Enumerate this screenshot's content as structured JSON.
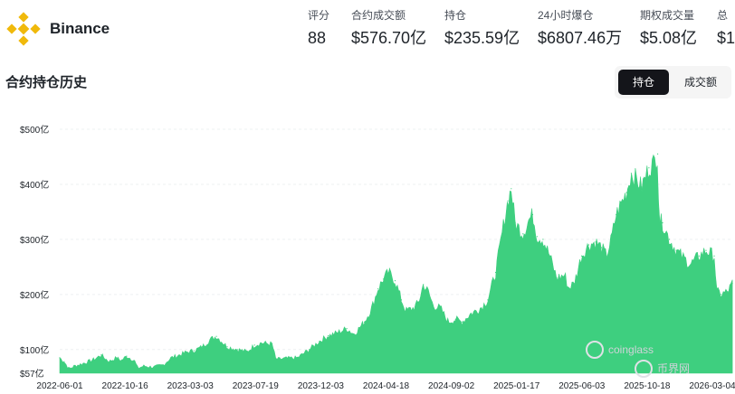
{
  "brand": {
    "name": "Binance",
    "logo": "binance-diamond-logo",
    "logo_color": "#F0B90B"
  },
  "stats": [
    {
      "label": "评分",
      "value": "88"
    },
    {
      "label": "合约成交额",
      "value": "$576.70亿"
    },
    {
      "label": "持仓",
      "value": "$235.59亿"
    },
    {
      "label": "24小时爆仓",
      "value": "$6807.46万"
    },
    {
      "label": "期权成交量",
      "value": "$5.08亿"
    },
    {
      "label": "总",
      "value": "$1"
    }
  ],
  "section": {
    "title": "合约持仓历史"
  },
  "toggle": {
    "active": "持仓",
    "inactive": "成交额"
  },
  "watermarks": {
    "coinglass": "coinglass",
    "site": "币界网"
  },
  "colors": {
    "series": "#3ECF7F",
    "toggle_active_bg": "#14151A",
    "toggle_bg": "#F5F5F5"
  },
  "chart_data": {
    "type": "area",
    "ylabel": "",
    "xlabel": "",
    "y_unit": "亿 USD",
    "ylim": [
      57,
      500
    ],
    "y_ticks": [
      {
        "value": 500,
        "label": "$500亿"
      },
      {
        "value": 400,
        "label": "$400亿"
      },
      {
        "value": 300,
        "label": "$300亿"
      },
      {
        "value": 200,
        "label": "$200亿"
      },
      {
        "value": 100,
        "label": "$100亿"
      },
      {
        "value": 57,
        "label": "$57亿"
      }
    ],
    "x_ticks": [
      "2022-06-01",
      "2022-10-16",
      "2023-03-03",
      "2023-07-19",
      "2023-12-03",
      "2024-04-18",
      "2024-09-02",
      "2025-01-17",
      "2025-06-03",
      "2025-10-18",
      "2026-03-04"
    ],
    "grid": true,
    "series": [
      {
        "points": [
          [
            "2022-06-01",
            85
          ],
          [
            "2022-06-10",
            78
          ],
          [
            "2022-06-20",
            65
          ],
          [
            "2022-07-01",
            70
          ],
          [
            "2022-07-20",
            75
          ],
          [
            "2022-08-10",
            82
          ],
          [
            "2022-08-25",
            90
          ],
          [
            "2022-09-10",
            78
          ],
          [
            "2022-09-25",
            85
          ],
          [
            "2022-10-05",
            80
          ],
          [
            "2022-10-16",
            88
          ],
          [
            "2022-11-01",
            80
          ],
          [
            "2022-11-08",
            66
          ],
          [
            "2022-11-20",
            70
          ],
          [
            "2022-12-10",
            68
          ],
          [
            "2022-12-30",
            72
          ],
          [
            "2023-01-15",
            85
          ],
          [
            "2023-02-01",
            90
          ],
          [
            "2023-02-15",
            95
          ],
          [
            "2023-03-03",
            98
          ],
          [
            "2023-03-20",
            105
          ],
          [
            "2023-04-05",
            118
          ],
          [
            "2023-04-18",
            124
          ],
          [
            "2023-05-10",
            105
          ],
          [
            "2023-06-01",
            100
          ],
          [
            "2023-06-20",
            96
          ],
          [
            "2023-07-05",
            108
          ],
          [
            "2023-07-19",
            112
          ],
          [
            "2023-08-10",
            110
          ],
          [
            "2023-08-18",
            82
          ],
          [
            "2023-09-10",
            84
          ],
          [
            "2023-10-01",
            85
          ],
          [
            "2023-10-25",
            100
          ],
          [
            "2023-11-15",
            115
          ],
          [
            "2023-12-03",
            125
          ],
          [
            "2023-12-20",
            130
          ],
          [
            "2024-01-10",
            138
          ],
          [
            "2024-01-25",
            128
          ],
          [
            "2024-02-15",
            150
          ],
          [
            "2024-03-01",
            175
          ],
          [
            "2024-03-14",
            210
          ],
          [
            "2024-03-25",
            228
          ],
          [
            "2024-04-05",
            240
          ],
          [
            "2024-04-18",
            225
          ],
          [
            "2024-05-01",
            190
          ],
          [
            "2024-05-10",
            170
          ],
          [
            "2024-05-25",
            175
          ],
          [
            "2024-06-05",
            185
          ],
          [
            "2024-06-15",
            218
          ],
          [
            "2024-06-25",
            205
          ],
          [
            "2024-07-05",
            180
          ],
          [
            "2024-07-20",
            175
          ],
          [
            "2024-08-05",
            150
          ],
          [
            "2024-08-20",
            155
          ],
          [
            "2024-09-02",
            150
          ],
          [
            "2024-09-20",
            165
          ],
          [
            "2024-10-10",
            175
          ],
          [
            "2024-10-25",
            190
          ],
          [
            "2024-11-10",
            240
          ],
          [
            "2024-11-25",
            320
          ],
          [
            "2024-12-05",
            370
          ],
          [
            "2024-12-12",
            392
          ],
          [
            "2024-12-20",
            330
          ],
          [
            "2025-01-05",
            310
          ],
          [
            "2025-01-17",
            335
          ],
          [
            "2025-01-25",
            345
          ],
          [
            "2025-02-03",
            305
          ],
          [
            "2025-02-15",
            300
          ],
          [
            "2025-03-01",
            270
          ],
          [
            "2025-03-15",
            230
          ],
          [
            "2025-04-01",
            235
          ],
          [
            "2025-04-08",
            212
          ],
          [
            "2025-04-20",
            220
          ],
          [
            "2025-05-05",
            270
          ],
          [
            "2025-05-20",
            290
          ],
          [
            "2025-06-03",
            295
          ],
          [
            "2025-06-15",
            285
          ],
          [
            "2025-06-25",
            270
          ],
          [
            "2025-07-05",
            300
          ],
          [
            "2025-07-15",
            345
          ],
          [
            "2025-07-25",
            365
          ],
          [
            "2025-08-05",
            385
          ],
          [
            "2025-08-15",
            420
          ],
          [
            "2025-08-25",
            410
          ],
          [
            "2025-09-05",
            395
          ],
          [
            "2025-09-20",
            430
          ],
          [
            "2025-10-01",
            440
          ],
          [
            "2025-10-08",
            455
          ],
          [
            "2025-10-11",
            335
          ],
          [
            "2025-10-18",
            330
          ],
          [
            "2025-11-01",
            300
          ],
          [
            "2025-11-15",
            280
          ],
          [
            "2025-12-01",
            265
          ],
          [
            "2025-12-15",
            255
          ],
          [
            "2026-01-01",
            270
          ],
          [
            "2026-01-15",
            280
          ],
          [
            "2026-02-01",
            270
          ],
          [
            "2026-02-06",
            205
          ],
          [
            "2026-02-15",
            200
          ],
          [
            "2026-03-01",
            205
          ],
          [
            "2026-03-10",
            220
          ]
        ]
      }
    ]
  }
}
